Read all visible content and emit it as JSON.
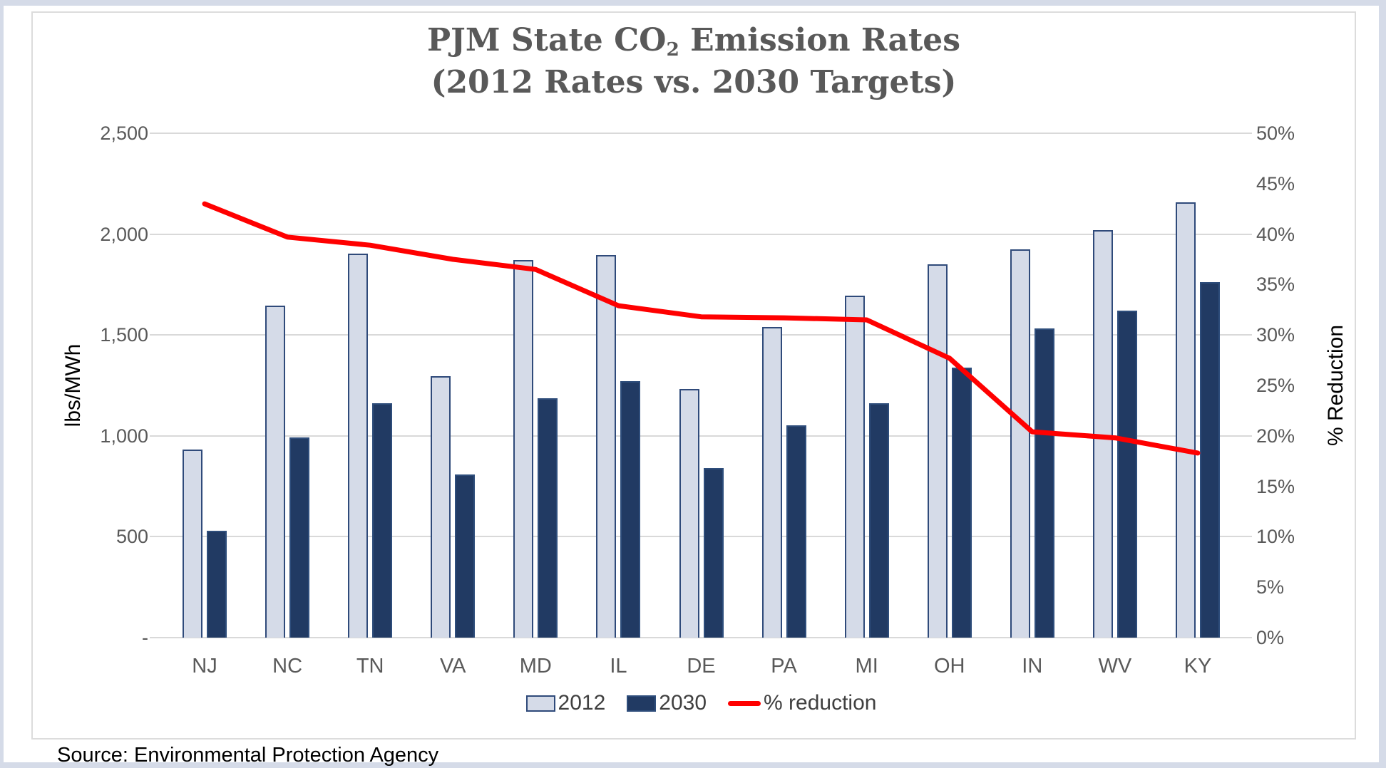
{
  "title": {
    "line1_pre": "PJM State CO",
    "line1_sub": "2",
    "line1_post": " Emission Rates",
    "line2": "(2012 Rates vs. 2030 Targets)"
  },
  "left_axis": {
    "label": "lbs/MWh",
    "max": 2500,
    "ticks": [
      {
        "label": "2,500",
        "value": 2500
      },
      {
        "label": "2,000",
        "value": 2000
      },
      {
        "label": "1,500",
        "value": 1500
      },
      {
        "label": "1,000",
        "value": 1000
      },
      {
        "label": "500",
        "value": 500
      },
      {
        "label": "-",
        "value": 0
      }
    ]
  },
  "right_axis": {
    "label": "% Reduction",
    "max": 50,
    "ticks": [
      {
        "label": "50%",
        "value": 50
      },
      {
        "label": "45%",
        "value": 45
      },
      {
        "label": "40%",
        "value": 40
      },
      {
        "label": "35%",
        "value": 35
      },
      {
        "label": "30%",
        "value": 30
      },
      {
        "label": "25%",
        "value": 25
      },
      {
        "label": "20%",
        "value": 20
      },
      {
        "label": "15%",
        "value": 15
      },
      {
        "label": "10%",
        "value": 10
      },
      {
        "label": "5%",
        "value": 5
      },
      {
        "label": "0%",
        "value": 0
      }
    ]
  },
  "chart_data": {
    "type": "bar",
    "subtype": "bar+line combo, dual axis",
    "title": "PJM State CO2 Emission Rates (2012 Rates vs. 2030 Targets)",
    "xlabel": "",
    "ylabel_left": "lbs/MWh",
    "ylabel_right": "% Reduction",
    "ylim_left": [
      0,
      2500
    ],
    "ylim_right": [
      0,
      50
    ],
    "grid": "horizontal",
    "legend_position": "bottom",
    "categories": [
      "NJ",
      "NC",
      "TN",
      "VA",
      "MD",
      "IL",
      "DE",
      "PA",
      "MI",
      "OH",
      "IN",
      "WV",
      "KY"
    ],
    "series": [
      {
        "name": "2012",
        "type": "bar",
        "axis": "left",
        "values": [
          932,
          1646,
          1903,
          1297,
          1870,
          1895,
          1234,
          1540,
          1696,
          1850,
          1923,
          2019,
          2158
        ]
      },
      {
        "name": "2030",
        "type": "bar",
        "axis": "left",
        "values": [
          531,
          992,
          1163,
          810,
          1187,
          1271,
          841,
          1052,
          1161,
          1338,
          1531,
          1620,
          1763
        ]
      },
      {
        "name": "% reduction",
        "type": "line",
        "axis": "right",
        "values": [
          43.0,
          39.7,
          38.9,
          37.5,
          36.5,
          32.9,
          31.8,
          31.7,
          31.5,
          27.7,
          20.4,
          19.8,
          18.3
        ]
      }
    ]
  },
  "legend": [
    {
      "label": "2012",
      "type": "box-light"
    },
    {
      "label": "2030",
      "type": "box-dark"
    },
    {
      "label": "% reduction",
      "type": "line"
    }
  ],
  "source": "Source: Environmental Protection Agency",
  "colors": {
    "bar_2012_fill": "#d5dbe8",
    "bar_2012_border": "#2f4a7a",
    "bar_2030_fill": "#213a63",
    "bar_2030_border": "#2e4d7b",
    "reduction_line": "#ff0000",
    "gridline": "#d9d9d9",
    "tick_text": "#595959",
    "title_text": "#595959",
    "frame": "#d5dbe8"
  }
}
